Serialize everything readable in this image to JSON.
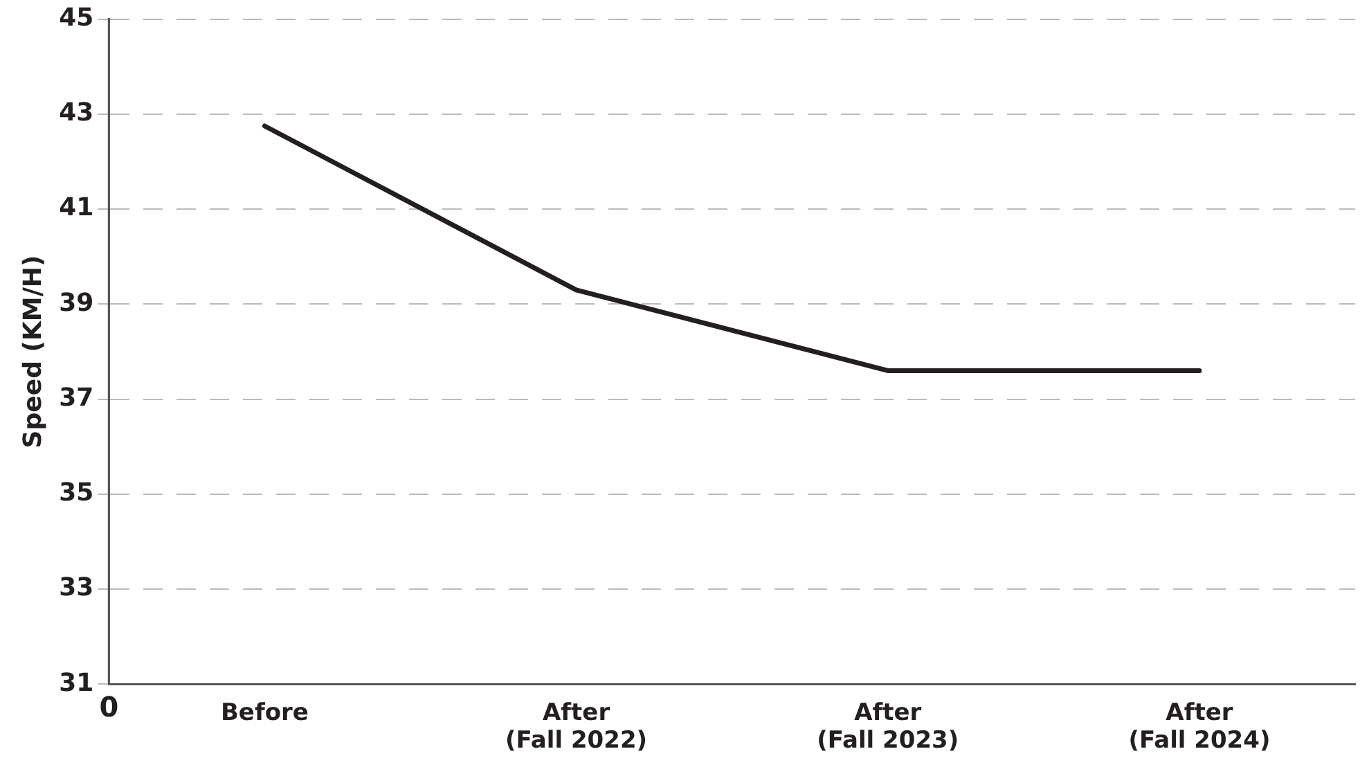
{
  "chart_data": {
    "type": "line",
    "ylabel": "Speed (KM/H)",
    "categories": [
      "Before",
      "After\n(Fall 2022)",
      "After\n(Fall 2023)",
      "After\n(Fall 2024)"
    ],
    "series": [
      {
        "color": "#231f20",
        "values": [
          42.75,
          39.3,
          37.6,
          37.6
        ]
      }
    ],
    "ylim": [
      31,
      45
    ],
    "yticks": [
      31,
      33,
      35,
      37,
      39,
      41,
      43,
      45
    ],
    "grid": "y",
    "legend": false,
    "marker": "none",
    "line_style": "solid",
    "annotations": [
      "0"
    ]
  }
}
